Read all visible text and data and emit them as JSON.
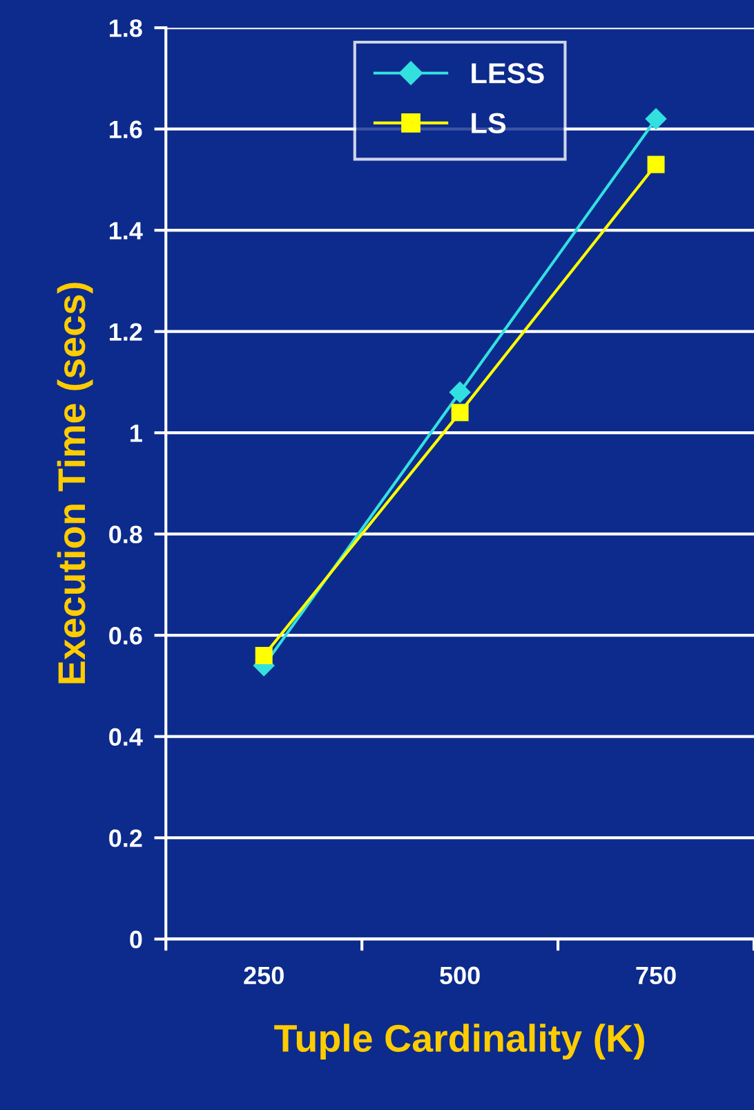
{
  "chart_data": {
    "type": "line",
    "xlabel": "Tuple Cardinality (K)",
    "ylabel": "Execution Time (secs)",
    "x": [
      250,
      500,
      750
    ],
    "xlim": [
      125,
      875
    ],
    "xticks": [
      {
        "value": 125,
        "label": null
      },
      250,
      {
        "value": 375,
        "label": null
      },
      500,
      {
        "value": 625,
        "label": null
      },
      750,
      {
        "value": 875,
        "label": null
      }
    ],
    "series": [
      {
        "name": "LESS",
        "color": "#33e0e0",
        "values": [
          0.54,
          1.08,
          1.62
        ],
        "marker": "diamond"
      },
      {
        "name": "LS",
        "color": "#ffff00",
        "values": [
          0.56,
          1.04,
          1.53
        ],
        "marker": "square"
      }
    ],
    "ylim": [
      0,
      1.8
    ],
    "yticks": [
      0,
      0.2,
      0.4,
      0.6,
      0.8,
      1,
      1.2,
      1.4,
      1.6,
      1.8
    ],
    "grid": "y",
    "legend": "top",
    "line_style": "solid"
  }
}
